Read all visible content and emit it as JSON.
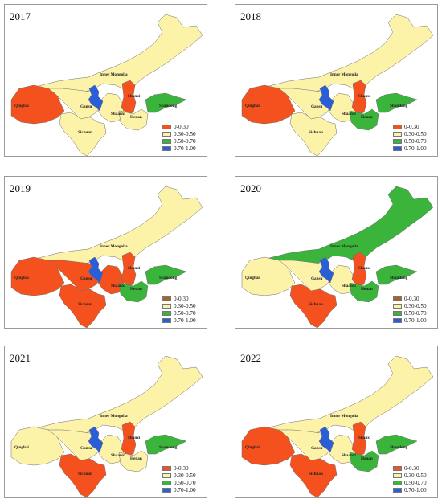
{
  "legend": [
    {
      "label": "0-0.30",
      "color": "#f4511e"
    },
    {
      "label": "0.30-0.50",
      "color": "#fcf2a8"
    },
    {
      "label": "0.50-0.70",
      "color": "#3ab43a"
    },
    {
      "label": "0.70-1.00",
      "color": "#2a5ed6"
    }
  ],
  "legend_2019_2020_first_color": "#a5652a",
  "region_names": {
    "inner_mongolia": "Inner Mongolia",
    "qinghai": "Qinghai",
    "gansu": "Gansu",
    "ningxia": "",
    "shanxi": "Shanxi",
    "shaanxi": "Shaanxi",
    "shandong": "Shandong",
    "henan": "Henan",
    "sichuan": "Sichuan"
  },
  "panels": [
    {
      "year": "2017",
      "fill": {
        "inner_mongolia": "#fcf2a8",
        "qinghai": "#f4511e",
        "gansu": "#fcf2a8",
        "ningxia": "#2a5ed6",
        "shanxi": "#f4511e",
        "shaanxi": "#fcf2a8",
        "shandong": "#3ab43a",
        "henan": "#fcf2a8",
        "sichuan": "#fcf2a8"
      }
    },
    {
      "year": "2018",
      "fill": {
        "inner_mongolia": "#fcf2a8",
        "qinghai": "#f4511e",
        "gansu": "#fcf2a8",
        "ningxia": "#2a5ed6",
        "shanxi": "#f4511e",
        "shaanxi": "#fcf2a8",
        "shandong": "#3ab43a",
        "henan": "#3ab43a",
        "sichuan": "#fcf2a8"
      }
    },
    {
      "year": "2019",
      "fill": {
        "inner_mongolia": "#fcf2a8",
        "qinghai": "#f4511e",
        "gansu": "#f4511e",
        "ningxia": "#2a5ed6",
        "shanxi": "#f4511e",
        "shaanxi": "#f4511e",
        "shandong": "#3ab43a",
        "henan": "#3ab43a",
        "sichuan": "#f4511e"
      }
    },
    {
      "year": "2020",
      "fill": {
        "inner_mongolia": "#3ab43a",
        "qinghai": "#fcf2a8",
        "gansu": "#fcf2a8",
        "ningxia": "#2a5ed6",
        "shanxi": "#f4511e",
        "shaanxi": "#fcf2a8",
        "shandong": "#3ab43a",
        "henan": "#3ab43a",
        "sichuan": "#f4511e"
      }
    },
    {
      "year": "2021",
      "fill": {
        "inner_mongolia": "#fcf2a8",
        "qinghai": "#fcf2a8",
        "gansu": "#fcf2a8",
        "ningxia": "#2a5ed6",
        "shanxi": "#f4511e",
        "shaanxi": "#fcf2a8",
        "shandong": "#3ab43a",
        "henan": "#fcf2a8",
        "sichuan": "#f4511e"
      }
    },
    {
      "year": "2022",
      "fill": {
        "inner_mongolia": "#fcf2a8",
        "qinghai": "#f4511e",
        "gansu": "#fcf2a8",
        "ningxia": "#2a5ed6",
        "shanxi": "#f4511e",
        "shaanxi": "#fcf2a8",
        "shandong": "#3ab43a",
        "henan": "#3ab43a",
        "sichuan": "#f4511e"
      }
    }
  ]
}
